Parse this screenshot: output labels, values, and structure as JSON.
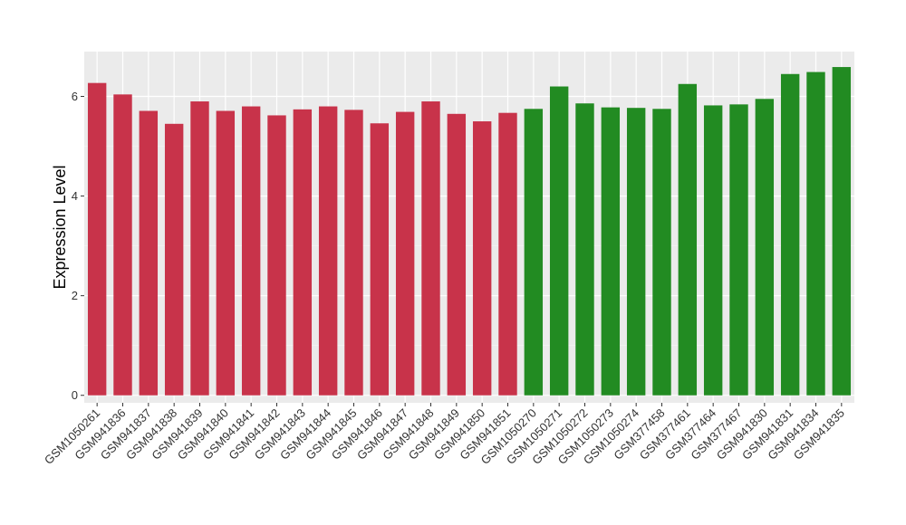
{
  "chart_data": {
    "type": "bar",
    "title": "",
    "xlabel": "",
    "ylabel": "Expression Level",
    "ylim": [
      -0.15,
      6.9
    ],
    "yticks": [
      0,
      2,
      4,
      6
    ],
    "grid": true,
    "panel_background": "#ebebeb",
    "categories": [
      "GSM1050261",
      "GSM941836",
      "GSM941837",
      "GSM941838",
      "GSM941839",
      "GSM941840",
      "GSM941841",
      "GSM941842",
      "GSM941843",
      "GSM941844",
      "GSM941845",
      "GSM941846",
      "GSM941847",
      "GSM941848",
      "GSM941849",
      "GSM941850",
      "GSM941851",
      "GSM1050270",
      "GSM1050271",
      "GSM1050272",
      "GSM1050273",
      "GSM1050274",
      "GSM377458",
      "GSM377461",
      "GSM377464",
      "GSM377467",
      "GSM941830",
      "GSM941831",
      "GSM941834",
      "GSM941835"
    ],
    "values": [
      6.27,
      6.04,
      5.71,
      5.45,
      5.9,
      5.71,
      5.8,
      5.62,
      5.74,
      5.8,
      5.73,
      5.46,
      5.69,
      5.9,
      5.65,
      5.5,
      5.67,
      5.75,
      6.2,
      5.86,
      5.78,
      5.77,
      5.75,
      6.25,
      5.82,
      5.84,
      5.95,
      6.45,
      6.49,
      6.59
    ],
    "bar_colors": [
      "#c8334a",
      "#c8334a",
      "#c8334a",
      "#c8334a",
      "#c8334a",
      "#c8334a",
      "#c8334a",
      "#c8334a",
      "#c8334a",
      "#c8334a",
      "#c8334a",
      "#c8334a",
      "#c8334a",
      "#c8334a",
      "#c8334a",
      "#c8334a",
      "#c8334a",
      "#228b22",
      "#228b22",
      "#228b22",
      "#228b22",
      "#228b22",
      "#228b22",
      "#228b22",
      "#228b22",
      "#228b22",
      "#228b22",
      "#228b22",
      "#228b22",
      "#228b22"
    ]
  }
}
